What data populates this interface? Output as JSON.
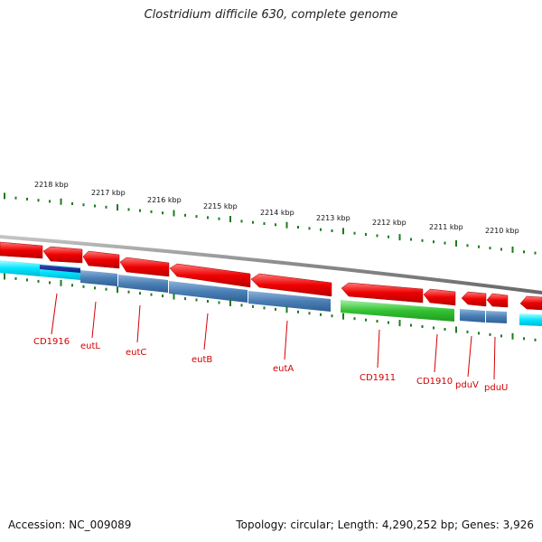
{
  "title": "Clostridium difficile 630, complete genome",
  "footer": {
    "accession": "Accession: NC_009089",
    "topology": "Topology: circular; Length: 4,290,252 bp; Genes: 3,926"
  },
  "ruler_ticks": [
    "2218 kbp",
    "2217 kbp",
    "2216 kbp",
    "2215 kbp",
    "2214 kbp",
    "2213 kbp",
    "2212 kbp",
    "2211 kbp",
    "2210 kbp"
  ],
  "gene_labels": [
    "CD1916",
    "eutL",
    "eutC",
    "eutB",
    "eutA",
    "CD1911",
    "CD1910",
    "pduV",
    "pduU"
  ],
  "colors": {
    "cds_strand": "#ee0000",
    "backbone": "#8a8a8a",
    "cog_blue": "#4a7fb5",
    "cog_navy": "#0a1a80",
    "cog_cyan": "#00e5ff",
    "cog_green": "#33c233",
    "ticks": "#1f7a1f",
    "label": "#d40000"
  }
}
